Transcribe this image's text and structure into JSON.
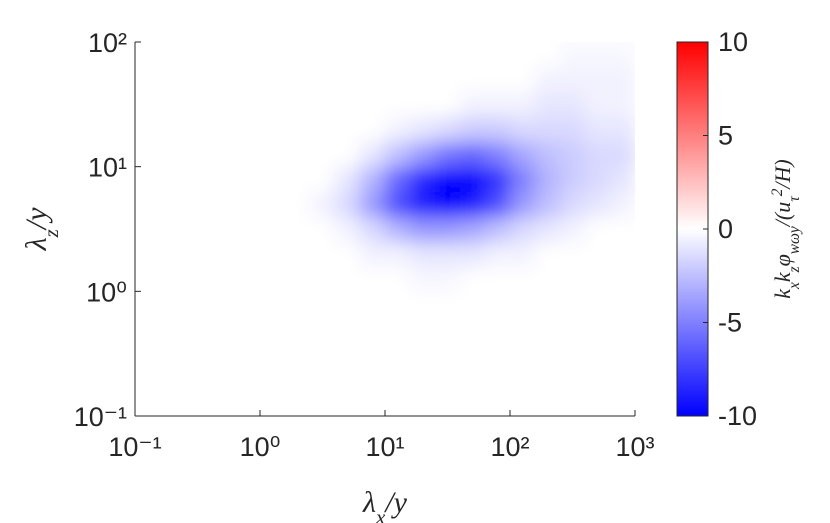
{
  "chart_data": {
    "type": "heatmap",
    "xlabel": [
      {
        "text": "λ"
      },
      {
        "text": "x",
        "sub": true
      },
      {
        "text": "/y"
      }
    ],
    "ylabel": [
      {
        "text": "λ"
      },
      {
        "text": "z",
        "sub": true
      },
      {
        "text": "/y"
      }
    ],
    "colorbar_label": [
      {
        "text": "k"
      },
      {
        "text": "x",
        "sub": true
      },
      {
        "text": "k"
      },
      {
        "text": "z",
        "sub": true
      },
      {
        "text": "φ"
      },
      {
        "text": "wωy",
        "sub": true
      },
      {
        "text": "/(u"
      },
      {
        "text": "τ",
        "sub": true
      },
      {
        "text": "2",
        "sup": true
      },
      {
        "text": "/H)"
      }
    ],
    "log_x": true,
    "log_y": true,
    "xlim": [
      0.1,
      1000
    ],
    "ylim": [
      0.1,
      100
    ],
    "xticks": [
      {
        "value": 0.1,
        "label": "10⁻¹"
      },
      {
        "value": 1,
        "label": "10⁰"
      },
      {
        "value": 10,
        "label": "10¹"
      },
      {
        "value": 100,
        "label": "10²"
      },
      {
        "value": 1000,
        "label": "10³"
      }
    ],
    "yticks": [
      {
        "value": 0.1,
        "label": "10⁻¹"
      },
      {
        "value": 1,
        "label": "10⁰"
      },
      {
        "value": 10,
        "label": "10¹"
      },
      {
        "value": 100,
        "label": "10²"
      }
    ],
    "x_edges": [
      0.1,
      0.158,
      0.251,
      0.398,
      0.631,
      1,
      1.585,
      2.512,
      3.981,
      6.31,
      10,
      15.85,
      25.12,
      39.81,
      63.1,
      100,
      158.5,
      251.2,
      398.1,
      631,
      1000
    ],
    "y_edges": [
      0.1,
      0.158,
      0.251,
      0.398,
      0.631,
      1,
      1.585,
      2.512,
      3.981,
      6.31,
      10,
      15.85,
      25.12,
      39.81,
      63.1,
      100
    ],
    "z": [
      [
        0,
        0,
        0,
        0,
        0,
        0,
        0,
        0,
        0,
        0,
        0,
        0,
        0,
        0,
        0,
        0,
        0,
        0,
        0,
        0
      ],
      [
        0,
        0,
        0,
        0,
        0,
        0,
        0,
        0,
        0,
        0,
        0,
        0,
        0,
        0,
        0,
        0,
        0,
        0,
        0,
        0
      ],
      [
        0,
        0,
        0,
        0,
        0,
        0,
        0,
        0,
        0,
        0,
        0,
        0,
        0,
        0,
        0,
        0,
        0,
        0,
        0,
        0
      ],
      [
        0,
        0,
        0,
        0,
        0,
        0,
        0,
        0,
        0,
        0,
        0,
        0,
        0,
        0,
        0,
        0,
        0,
        0,
        0,
        0
      ],
      [
        0,
        0,
        0,
        0,
        0,
        0,
        0,
        0,
        0,
        0,
        0,
        0,
        0,
        0,
        0,
        0,
        0,
        0,
        0,
        0
      ],
      [
        0,
        0,
        0,
        0,
        0,
        0,
        0,
        0,
        0,
        0,
        0,
        -0.3,
        -0.3,
        0,
        0,
        0,
        0,
        0,
        0,
        0
      ],
      [
        0,
        0,
        0,
        0,
        0,
        0,
        0,
        0,
        0,
        -0.5,
        -0.5,
        -1,
        -1,
        -1,
        -0.5,
        -0.5,
        0,
        0,
        0,
        0
      ],
      [
        0,
        0,
        0,
        0,
        0,
        0,
        0,
        0,
        -0.5,
        -1.5,
        -3,
        -4,
        -4,
        -3.5,
        -2.5,
        -1.5,
        -1,
        -0.5,
        0,
        0
      ],
      [
        0,
        0,
        0,
        0,
        0,
        0,
        0,
        -0.5,
        -1.5,
        -4,
        -7,
        -9,
        -10,
        -9,
        -7,
        -4,
        -2.5,
        -1.5,
        -1,
        -0.5
      ],
      [
        0,
        0,
        0,
        0,
        0,
        0,
        0,
        0,
        -1,
        -3,
        -6,
        -8.5,
        -10,
        -10,
        -8,
        -5,
        -3,
        -2,
        -1.5,
        -1
      ],
      [
        0,
        0,
        0,
        0,
        0,
        0,
        0,
        0,
        0,
        -1,
        -2.5,
        -4,
        -5.5,
        -6,
        -5,
        -3.5,
        -2.5,
        -2,
        -1.5,
        -1.5
      ],
      [
        0,
        0,
        0,
        0,
        0,
        0,
        0,
        0,
        0,
        0,
        -0.5,
        -1,
        -1.5,
        -2,
        -2,
        -1.5,
        -1.5,
        -1.5,
        -1,
        -1
      ],
      [
        0,
        0,
        0,
        0,
        0,
        0,
        0,
        0,
        0,
        0,
        0,
        0,
        0,
        -0.5,
        -0.5,
        -0.5,
        -1,
        -1,
        -0.5,
        -0.5
      ],
      [
        0,
        0,
        0,
        0,
        0,
        0,
        0,
        0,
        0,
        0,
        0,
        0,
        0,
        0,
        0,
        0,
        -0.5,
        -0.5,
        -0.5,
        -0.5
      ],
      [
        0,
        0,
        0,
        0,
        0,
        0,
        0,
        0,
        0,
        0,
        0,
        0,
        0,
        0,
        0,
        0,
        0,
        -0.3,
        -0.3,
        -0.3
      ]
    ],
    "clim": [
      -10,
      10
    ],
    "cticks": [
      -10,
      -5,
      0,
      5,
      10
    ],
    "colormap": [
      "#0000ff",
      "#ffffff",
      "#ff0000"
    ]
  }
}
